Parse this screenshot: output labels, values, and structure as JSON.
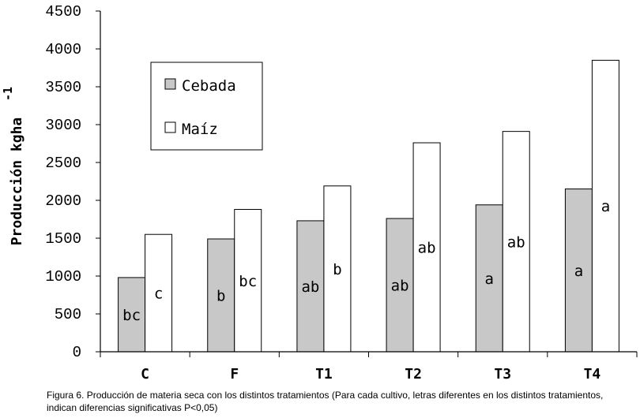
{
  "chart_data": {
    "type": "bar",
    "ylabel": "Producción kgha",
    "ylabel_superscript": "-1",
    "ylim": [
      0,
      4500
    ],
    "yticks": [
      0,
      500,
      1000,
      1500,
      2000,
      2500,
      3000,
      3500,
      4000,
      4500
    ],
    "categories": [
      "C",
      "F",
      "T1",
      "T2",
      "T3",
      "T4"
    ],
    "series": [
      {
        "name": "Cebada",
        "color": "#c8c8c8",
        "values": [
          980,
          1490,
          1730,
          1760,
          1940,
          2150
        ],
        "labels": [
          "bc",
          "b",
          "ab",
          "ab",
          "a",
          "a"
        ]
      },
      {
        "name": "Maíz",
        "color": "#ffffff",
        "values": [
          1550,
          1880,
          2190,
          2760,
          2910,
          3850
        ],
        "labels": [
          "c",
          "bc",
          "b",
          "ab",
          "ab",
          "a"
        ]
      }
    ],
    "legend": "top-left",
    "grid": false
  },
  "caption": "Figura 6. Producción de materia seca con los distintos tratamientos (Para cada cultivo, letras diferentes en los distintos tratamientos, indican diferencias significativas P<0,05)"
}
